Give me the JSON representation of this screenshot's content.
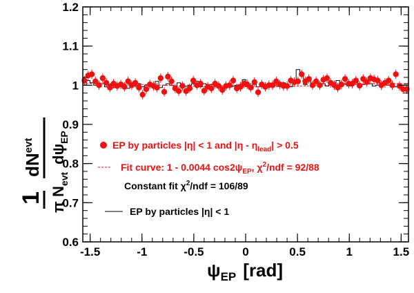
{
  "colors": {
    "points": "#ee1111",
    "fit_curve": "#ee1111",
    "histogram": "#000000",
    "frame": "#000000",
    "background": "#ffffff"
  },
  "chart_data": {
    "type": "scatter",
    "xlabel": {
      "main": "ψ",
      "sub": "EP",
      "unit": "[rad]"
    },
    "ylabel": {
      "one": "1",
      "pi_n": "π N",
      "pi_n_sub": "evt",
      "dn": "dN",
      "dn_sub": "evt",
      "dpsi": "dψ",
      "dpsi_sub": "EP"
    },
    "xlim": [
      -1.5708,
      1.5708
    ],
    "ylim": [
      0.6,
      1.2
    ],
    "x_ticks": [
      -1.5,
      -1,
      -0.5,
      0,
      0.5,
      1,
      1.5
    ],
    "x_tick_labels": [
      "-1.5",
      "-1",
      "-0.5",
      "0",
      "0.5",
      "1",
      "1.5"
    ],
    "y_ticks": [
      0.6,
      0.7,
      0.8,
      0.9,
      1,
      1.1,
      1.2
    ],
    "y_tick_labels": [
      "0.6",
      "0.7",
      "0.8",
      "0.9",
      "1",
      "1.1",
      "1.2"
    ],
    "grid": false,
    "legend_position": "lower-left inside",
    "legend": [
      {
        "kind": "marker",
        "color": "#ee1111",
        "text": "EP by particles |η| < 1 and |η - η",
        "sub": "lead",
        "text_after": "| > 0.5"
      },
      {
        "kind": "dashed",
        "color": "#ee1111",
        "text": "Fit curve: 1 - 0.0044 cos2ψ",
        "sub": "EP",
        "text_mid": ", χ",
        "sup": "2",
        "text_after": "/ndf = 92/88"
      },
      {
        "kind": "none",
        "color": "#000000",
        "text": "Constant fit χ",
        "sup": "2",
        "text_after": "/ndf = 106/89"
      },
      {
        "kind": "line",
        "color": "#000000",
        "text": "EP by particles |η| < 1"
      }
    ],
    "series": [
      {
        "kind": "points_with_errors",
        "x": [
          -1.554,
          -1.519,
          -1.484,
          -1.449,
          -1.414,
          -1.379,
          -1.344,
          -1.309,
          -1.274,
          -1.239,
          -1.204,
          -1.169,
          -1.134,
          -1.099,
          -1.064,
          -1.029,
          -0.994,
          -0.959,
          -0.924,
          -0.889,
          -0.855,
          -0.82,
          -0.785,
          -0.75,
          -0.715,
          -0.68,
          -0.645,
          -0.61,
          -0.575,
          -0.54,
          -0.505,
          -0.47,
          -0.435,
          -0.4,
          -0.365,
          -0.33,
          -0.295,
          -0.26,
          -0.225,
          -0.19,
          -0.155,
          -0.12,
          -0.085,
          -0.05,
          -0.015,
          0.015,
          0.05,
          0.085,
          0.12,
          0.155,
          0.19,
          0.225,
          0.26,
          0.295,
          0.33,
          0.365,
          0.4,
          0.435,
          0.47,
          0.505,
          0.54,
          0.575,
          0.61,
          0.645,
          0.68,
          0.715,
          0.75,
          0.785,
          0.82,
          0.855,
          0.889,
          0.924,
          0.959,
          0.994,
          1.029,
          1.064,
          1.099,
          1.134,
          1.169,
          1.204,
          1.239,
          1.274,
          1.309,
          1.344,
          1.379,
          1.414,
          1.449,
          1.484,
          1.519,
          1.554
        ],
        "y": [
          1.012,
          1.025,
          1.028,
          1.01,
          1.0,
          1.018,
          1.006,
          0.994,
          1.004,
          0.998,
          1.002,
          0.996,
          1.01,
          1.0,
          1.006,
          0.994,
          0.976,
          0.99,
          1.002,
          0.998,
          0.994,
          1.018,
          0.983,
          1.022,
          1.01,
          0.992,
          0.985,
          0.998,
          0.985,
          0.992,
          1.012,
          1.0,
          1.004,
          0.986,
          0.996,
          0.992,
          1.004,
          0.998,
          0.988,
          0.998,
          1.0,
          1.012,
          0.992,
          0.996,
          1.004,
          1.002,
          0.994,
          1.008,
          0.982,
          1.002,
          0.996,
          1.0,
          1.0,
          1.01,
          1.002,
          0.998,
          0.998,
          1.012,
          1.008,
          1.01,
          1.028,
          1.01,
          1.016,
          1.0,
          1.01,
          1.0,
          1.014,
          1.018,
          1.006,
          1.0,
          0.994,
          1.002,
          1.016,
          1.004,
          1.004,
          1.012,
          0.999,
          1.016,
          1.008,
          1.018,
          1.015,
          1.012,
          1.0,
          1.006,
          1.012,
          1.0,
          1.028,
          0.998,
          0.99,
          0.99
        ],
        "error": 0.012
      },
      {
        "kind": "histogram",
        "x": [
          -1.554,
          -1.519,
          -1.484,
          -1.449,
          -1.414,
          -1.379,
          -1.344,
          -1.309,
          -1.274,
          -1.239,
          -1.204,
          -1.169,
          -1.134,
          -1.099,
          -1.064,
          -1.029,
          -0.994,
          -0.959,
          -0.924,
          -0.889,
          -0.855,
          -0.82,
          -0.785,
          -0.75,
          -0.715,
          -0.68,
          -0.645,
          -0.61,
          -0.575,
          -0.54,
          -0.505,
          -0.47,
          -0.435,
          -0.4,
          -0.365,
          -0.33,
          -0.295,
          -0.26,
          -0.225,
          -0.19,
          -0.155,
          -0.12,
          -0.085,
          -0.05,
          -0.015,
          0.015,
          0.05,
          0.085,
          0.12,
          0.155,
          0.19,
          0.225,
          0.26,
          0.295,
          0.33,
          0.365,
          0.4,
          0.435,
          0.47,
          0.505,
          0.54,
          0.575,
          0.61,
          0.645,
          0.68,
          0.715,
          0.75,
          0.785,
          0.82,
          0.855,
          0.889,
          0.924,
          0.959,
          0.994,
          1.029,
          1.064,
          1.099,
          1.134,
          1.169,
          1.204,
          1.239,
          1.274,
          1.309,
          1.344,
          1.379,
          1.414,
          1.449,
          1.484,
          1.519,
          1.554
        ],
        "y": [
          1.0,
          1.012,
          1.006,
          1.0,
          0.998,
          1.004,
          0.996,
          1.002,
          0.994,
          1.0,
          1.004,
          0.998,
          0.992,
          1.002,
          0.998,
          1.004,
          0.996,
          1.0,
          0.998,
          1.002,
          1.01,
          0.994,
          1.0,
          1.004,
          1.0,
          0.992,
          1.006,
          1.004,
          0.998,
          1.0,
          1.004,
          1.01,
          0.996,
          1.004,
          0.998,
          1.002,
          1.006,
          1.0,
          0.994,
          1.002,
          1.004,
          0.998,
          1.0,
          1.002,
          1.014,
          1.006,
          0.998,
          1.002,
          0.996,
          1.004,
          1.0,
          0.998,
          1.004,
          1.0,
          0.998,
          1.006,
          1.0,
          0.996,
          1.004,
          1.04,
          1.024,
          1.002,
          1.01,
          1.0,
          1.006,
          1.0,
          1.004,
          0.998,
          1.002,
          1.006,
          1.012,
          1.0,
          1.004,
          0.998,
          1.002,
          1.006,
          1.0,
          1.002,
          1.008,
          1.004,
          0.998,
          1.0,
          1.006,
          1.002,
          1.0,
          1.004,
          0.996,
          1.002,
          1.0,
          1.004
        ]
      },
      {
        "kind": "fit_curve",
        "formula": "1 - 0.0044 cos2ψ"
      }
    ]
  }
}
